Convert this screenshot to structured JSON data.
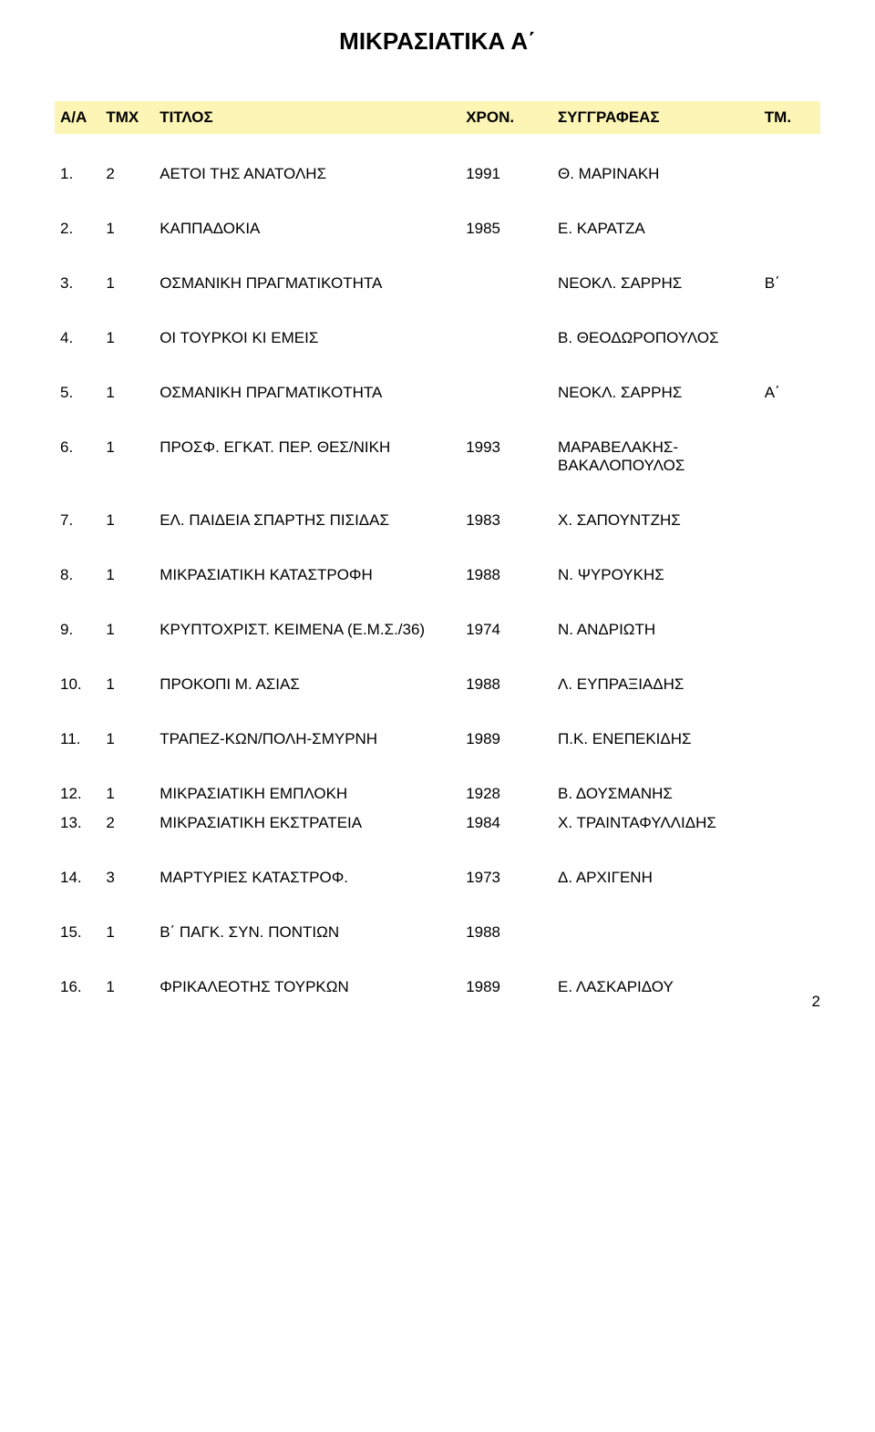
{
  "title": "ΜΙΚΡΑΣΙΑΤΙΚΑ Α΄",
  "page_number": "2",
  "colors": {
    "header_bg": "#fcf5b5",
    "page_bg": "#ffffff",
    "text": "#000000"
  },
  "columns": {
    "c1": "Α/Α",
    "c2": "ΤΜΧ",
    "c3": "ΤΙΤΛΟΣ",
    "c4": "ΧΡΟΝ.",
    "c5": "ΣΥΓΓΡΑΦΕΑΣ",
    "c6": "ΤΜ."
  },
  "rows": [
    {
      "aa": "1.",
      "tmx": "2",
      "titlos": "ΑΕΤΟΙ ΤΗΣ ΑΝΑΤΟΛΗΣ",
      "xron": "1991",
      "author": "Θ. ΜΑΡΙΝΑΚΗ",
      "tm": ""
    },
    {
      "aa": "2.",
      "tmx": "1",
      "titlos": "ΚΑΠΠΑΔΟΚΙΑ",
      "xron": "1985",
      "author": "Ε. ΚΑΡΑΤΖΑ",
      "tm": ""
    },
    {
      "aa": "3.",
      "tmx": "1",
      "titlos": "ΟΣΜΑΝΙΚΗ ΠΡΑΓΜΑΤΙΚΟΤΗΤΑ",
      "xron": "",
      "author": "ΝΕΟΚΛ. ΣΑΡΡΗΣ",
      "tm": "Β΄"
    },
    {
      "aa": "4.",
      "tmx": "1",
      "titlos": "ΟΙ ΤΟΥΡΚΟΙ ΚΙ ΕΜΕΙΣ",
      "xron": "",
      "author": "Β. ΘΕΟΔΩΡΟΠΟΥΛΟΣ",
      "tm": ""
    },
    {
      "aa": "5.",
      "tmx": "1",
      "titlos": "ΟΣΜΑΝΙΚΗ ΠΡΑΓΜΑΤΙΚΟΤΗΤΑ",
      "xron": "",
      "author": "ΝΕΟΚΛ. ΣΑΡΡΗΣ",
      "tm": "Α΄"
    },
    {
      "aa": "6.",
      "tmx": "1",
      "titlos": "ΠΡΟΣΦ. ΕΓΚΑΤ. ΠΕΡ. ΘΕΣ/ΝΙΚΗ",
      "xron": "1993",
      "author": "ΜΑΡΑΒΕΛΑΚΗΣ-ΒΑΚΑΛΟΠΟΥΛΟΣ",
      "tm": ""
    },
    {
      "aa": "7.",
      "tmx": "1",
      "titlos": "ΕΛ. ΠΑΙΔΕΙΑ ΣΠΑΡΤΗΣ ΠΙΣΙΔΑΣ",
      "xron": "1983",
      "author": "Χ. ΣΑΠΟΥΝΤΖΗΣ",
      "tm": ""
    },
    {
      "aa": "8.",
      "tmx": "1",
      "titlos": "ΜΙΚΡΑΣΙΑΤΙΚΗ ΚΑΤΑΣΤΡΟΦΗ",
      "xron": "1988",
      "author": "Ν. ΨΥΡΟΥΚΗΣ",
      "tm": ""
    },
    {
      "aa": "9.",
      "tmx": "1",
      "titlos": "ΚΡΥΠΤΟΧΡΙΣΤ. ΚΕΙΜΕΝΑ (Ε.Μ.Σ./36)",
      "xron": "1974",
      "author": "Ν. ΑΝΔΡΙΩΤΗ",
      "tm": ""
    },
    {
      "aa": "10.",
      "tmx": "1",
      "titlos": "ΠΡΟΚΟΠΙ Μ. ΑΣΙΑΣ",
      "xron": "1988",
      "author": "Λ. ΕΥΠΡΑΞΙΑΔΗΣ",
      "tm": ""
    },
    {
      "aa": "11.",
      "tmx": "1",
      "titlos": "ΤΡΑΠΕΖ-ΚΩΝ/ΠΟΛΗ-ΣΜΥΡΝΗ",
      "xron": "1989",
      "author": "Π.Κ. ΕΝΕΠΕΚΙΔΗΣ",
      "tm": ""
    },
    {
      "aa": "12.",
      "tmx": "1",
      "titlos": "ΜΙΚΡΑΣΙΑΤΙΚΗ ΕΜΠΛΟΚΗ",
      "xron": "1928",
      "author": "Β. ΔΟΥΣΜΑΝΗΣ",
      "tm": ""
    },
    {
      "aa": "13.",
      "tmx": "2",
      "titlos": "ΜΙΚΡΑΣΙΑΤΙΚΗ ΕΚΣΤΡΑΤΕΙΑ",
      "xron": "1984",
      "author": "Χ. ΤΡΑΙΝΤΑΦΥΛΛΙΔΗΣ",
      "tm": ""
    },
    {
      "aa": "14.",
      "tmx": "3",
      "titlos": "ΜΑΡΤΥΡΙΕΣ ΚΑΤΑΣΤΡΟΦ.",
      "xron": "1973",
      "author": "Δ. ΑΡΧΙΓΕΝΗ",
      "tm": ""
    },
    {
      "aa": "15.",
      "tmx": "1",
      "titlos": "Β΄ ΠΑΓΚ. ΣΥΝ. ΠΟΝΤΙΩΝ",
      "xron": "1988",
      "author": "",
      "tm": ""
    },
    {
      "aa": "16.",
      "tmx": "1",
      "titlos": "ΦΡΙΚΑΛΕΟΤΗΣ ΤΟΥΡΚΩΝ",
      "xron": "1989",
      "author": "Ε. ΛΑΣΚΑΡΙΔΟΥ",
      "tm": ""
    }
  ],
  "spacer_after": [
    0,
    1,
    2,
    3,
    4,
    5,
    6,
    7,
    8,
    9,
    10,
    12,
    13,
    14
  ]
}
